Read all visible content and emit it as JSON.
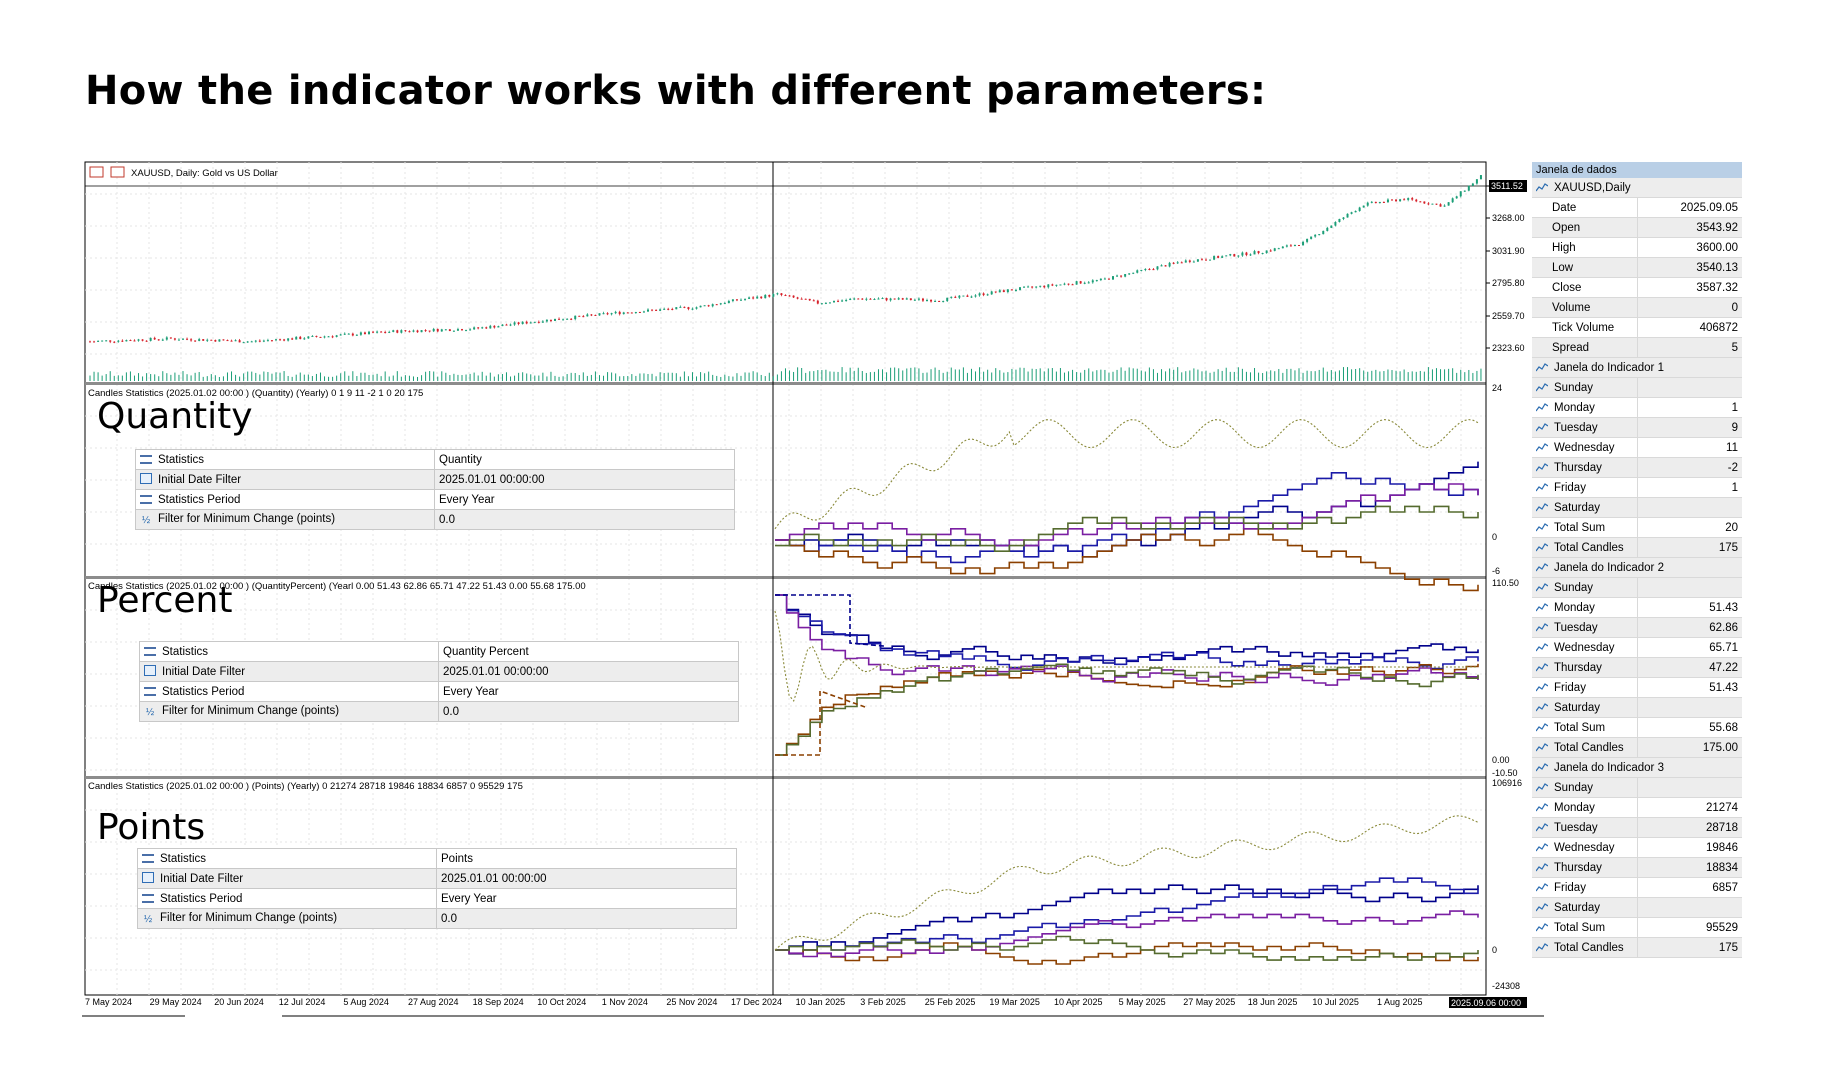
{
  "headline": "How the indicator works with different parameters:",
  "chart": {
    "symbol_label": "XAUUSD, Daily:  Gold vs US Dollar",
    "price_axis": [
      "3511.52",
      "3268.00",
      "3031.90",
      "2795.80",
      "2559.70",
      "2323.60"
    ],
    "current_price": "3511.52",
    "time_axis": [
      "7 May 2024",
      "29 May 2024",
      "20 Jun 2024",
      "12 Jul 2024",
      "5 Aug 2024",
      "27 Aug 2024",
      "18 Sep 2024",
      "10 Oct 2024",
      "1 Nov 2024",
      "25 Nov 2024",
      "17 Dec 2024",
      "10 Jan 2025",
      "3 Feb 2025",
      "25 Feb 2025",
      "19 Mar 2025",
      "10 Apr 2025",
      "5 May 2025",
      "27 May 2025",
      "18 Jun 2025",
      "10 Jul 2025",
      "1 Aug 2025"
    ],
    "time_cursor": "2025.09.06 00:00",
    "colors": {
      "up": "#1b9e77",
      "down": "#d6212a",
      "monday": "#00008b",
      "tuesday": "#00008b",
      "wednesday": "#1a1aa8",
      "thursday": "#8b4000",
      "friday": "#556b2f",
      "total": "#8a8a3a",
      "purple": "#7a1fa2"
    }
  },
  "panes": [
    {
      "indicator_label": "Candles Statistics (2025.01.02 00:00 ) (Quantity) (Yearly) 0 1 9 11 -2 1 0 20 175",
      "title": "Quantity",
      "axis": [
        "24",
        "0",
        "-6"
      ],
      "params": [
        {
          "name": "Statistics",
          "value": "Quantity",
          "icon": "list-icon"
        },
        {
          "name": "Initial Date Filter",
          "value": "2025.01.01 00:00:00",
          "icon": "calendar-icon"
        },
        {
          "name": "Statistics Period",
          "value": "Every Year",
          "icon": "list-icon"
        },
        {
          "name": "Filter for Minimum Change (points)",
          "value": "0.0",
          "icon": "fraction-icon"
        }
      ]
    },
    {
      "indicator_label": "Candles Statistics (2025.01.02 00:00 ) (QuantityPercent) (Yearl 0.00 51.43 62.86 65.71 47.22 51.43 0.00 55.68 175.00",
      "title": "Percent",
      "axis": [
        "110.50",
        "0.00",
        "-10.50"
      ],
      "params": [
        {
          "name": "Statistics",
          "value": "Quantity Percent",
          "icon": "list-icon"
        },
        {
          "name": "Initial Date Filter",
          "value": "2025.01.01 00:00:00",
          "icon": "calendar-icon"
        },
        {
          "name": "Statistics Period",
          "value": "Every Year",
          "icon": "list-icon"
        },
        {
          "name": "Filter for Minimum Change (points)",
          "value": "0.0",
          "icon": "fraction-icon"
        }
      ]
    },
    {
      "indicator_label": "Candles Statistics (2025.01.02 00:00 ) (Points) (Yearly) 0 21274 28718 19846 18834 6857 0 95529 175",
      "title": "Points",
      "axis": [
        "106916",
        "0",
        "-24308"
      ],
      "params": [
        {
          "name": "Statistics",
          "value": "Points",
          "icon": "list-icon"
        },
        {
          "name": "Initial Date Filter",
          "value": "2025.01.01 00:00:00",
          "icon": "calendar-icon"
        },
        {
          "name": "Statistics Period",
          "value": "Every Year",
          "icon": "list-icon"
        },
        {
          "name": "Filter for Minimum Change (points)",
          "value": "0.0",
          "icon": "fraction-icon"
        }
      ]
    }
  ],
  "data_window": {
    "header": "Janela de dados",
    "symbol": "XAUUSD,Daily",
    "ohlc": [
      {
        "k": "Date",
        "v": "2025.09.05"
      },
      {
        "k": "Open",
        "v": "3543.92"
      },
      {
        "k": "High",
        "v": "3600.00"
      },
      {
        "k": "Low",
        "v": "3540.13"
      },
      {
        "k": "Close",
        "v": "3587.32"
      },
      {
        "k": "Volume",
        "v": "0"
      },
      {
        "k": "Tick Volume",
        "v": "406872"
      },
      {
        "k": "Spread",
        "v": "5"
      }
    ],
    "indicators": [
      {
        "name": "Janela do Indicador 1",
        "rows": [
          {
            "k": "Sunday",
            "v": ""
          },
          {
            "k": "Monday",
            "v": "1"
          },
          {
            "k": "Tuesday",
            "v": "9"
          },
          {
            "k": "Wednesday",
            "v": "11"
          },
          {
            "k": "Thursday",
            "v": "-2"
          },
          {
            "k": "Friday",
            "v": "1"
          },
          {
            "k": "Saturday",
            "v": ""
          },
          {
            "k": "Total Sum",
            "v": "20"
          },
          {
            "k": "Total Candles",
            "v": "175"
          }
        ]
      },
      {
        "name": "Janela do Indicador 2",
        "rows": [
          {
            "k": "Sunday",
            "v": ""
          },
          {
            "k": "Monday",
            "v": "51.43"
          },
          {
            "k": "Tuesday",
            "v": "62.86"
          },
          {
            "k": "Wednesday",
            "v": "65.71"
          },
          {
            "k": "Thursday",
            "v": "47.22"
          },
          {
            "k": "Friday",
            "v": "51.43"
          },
          {
            "k": "Saturday",
            "v": ""
          },
          {
            "k": "Total Sum",
            "v": "55.68"
          },
          {
            "k": "Total Candles",
            "v": "175.00"
          }
        ]
      },
      {
        "name": "Janela do Indicador 3",
        "rows": [
          {
            "k": "Sunday",
            "v": ""
          },
          {
            "k": "Monday",
            "v": "21274"
          },
          {
            "k": "Tuesday",
            "v": "28718"
          },
          {
            "k": "Wednesday",
            "v": "19846"
          },
          {
            "k": "Thursday",
            "v": "18834"
          },
          {
            "k": "Friday",
            "v": "6857"
          },
          {
            "k": "Saturday",
            "v": ""
          },
          {
            "k": "Total Sum",
            "v": "95529"
          },
          {
            "k": "Total Candles",
            "v": "175"
          }
        ]
      }
    ]
  }
}
